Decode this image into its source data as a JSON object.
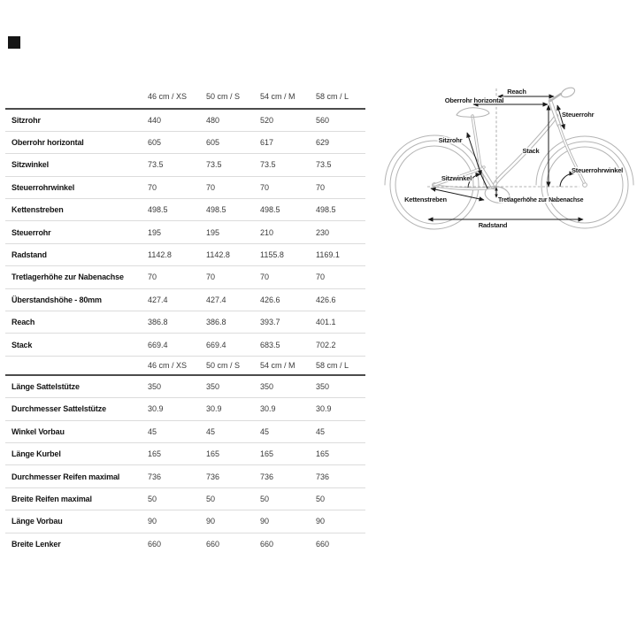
{
  "page": {
    "background": "#ffffff"
  },
  "logo_mark": {
    "color": "#151515"
  },
  "colors": {
    "heavy_rule": "#4c4c4c",
    "light_rule": "#dcdcdc",
    "label_text": "#141414",
    "value_text": "#3a3a3a",
    "drawing_stroke": "#b4b4b4",
    "annotation": "#1a1a1a"
  },
  "table": {
    "columns": [
      "46 cm / XS",
      "50 cm / S",
      "54 cm / M",
      "58 cm / L"
    ],
    "geometry_rows": [
      {
        "label": "Sitzrohr",
        "values": [
          "440",
          "480",
          "520",
          "560"
        ]
      },
      {
        "label": "Oberrohr horizontal",
        "values": [
          "605",
          "605",
          "617",
          "629"
        ]
      },
      {
        "label": "Sitzwinkel",
        "values": [
          "73.5",
          "73.5",
          "73.5",
          "73.5"
        ]
      },
      {
        "label": "Steuerrohrwinkel",
        "values": [
          "70",
          "70",
          "70",
          "70"
        ]
      },
      {
        "label": "Kettenstreben",
        "values": [
          "498.5",
          "498.5",
          "498.5",
          "498.5"
        ]
      },
      {
        "label": "Steuerrohr",
        "values": [
          "195",
          "195",
          "210",
          "230"
        ]
      },
      {
        "label": "Radstand",
        "values": [
          "1142.8",
          "1142.8",
          "1155.8",
          "1169.1"
        ]
      },
      {
        "label": "Tretlagerhöhe zur Nabenachse",
        "values": [
          "70",
          "70",
          "70",
          "70"
        ]
      },
      {
        "label": "Überstandshöhe - 80mm",
        "values": [
          "427.4",
          "427.4",
          "426.6",
          "426.6"
        ]
      },
      {
        "label": "Reach",
        "values": [
          "386.8",
          "386.8",
          "393.7",
          "401.1"
        ]
      },
      {
        "label": "Stack",
        "values": [
          "669.4",
          "669.4",
          "683.5",
          "702.2"
        ]
      }
    ],
    "component_rows": [
      {
        "label": "Länge Sattelstütze",
        "values": [
          "350",
          "350",
          "350",
          "350"
        ]
      },
      {
        "label": "Durchmesser Sattelstütze",
        "values": [
          "30.9",
          "30.9",
          "30.9",
          "30.9"
        ]
      },
      {
        "label": "Winkel Vorbau",
        "values": [
          "45",
          "45",
          "45",
          "45"
        ]
      },
      {
        "label": "Länge Kurbel",
        "values": [
          "165",
          "165",
          "165",
          "165"
        ]
      },
      {
        "label": "Durchmesser Reifen maximal",
        "values": [
          "736",
          "736",
          "736",
          "736"
        ]
      },
      {
        "label": "Breite Reifen maximal",
        "values": [
          "50",
          "50",
          "50",
          "50"
        ]
      },
      {
        "label": "Länge Vorbau",
        "values": [
          "90",
          "90",
          "90",
          "90"
        ]
      },
      {
        "label": "Breite Lenker",
        "values": [
          "660",
          "660",
          "660",
          "660"
        ]
      }
    ]
  },
  "diagram": {
    "labels": {
      "reach": "Reach",
      "oberrohr": "Oberrohr horizontal",
      "steuerrohr": "Steuerrohr",
      "sitzrohr": "Sitzrohr",
      "stack": "Stack",
      "steuerrohrwinkel": "Steuerrohrwinkel",
      "sitzwinkel": "Sitzwinkel",
      "kettenstreben": "Kettenstreben",
      "tretlagerhoehe": "Tretlagerhöhe zur Nabenachse",
      "radstand": "Radstand"
    }
  }
}
